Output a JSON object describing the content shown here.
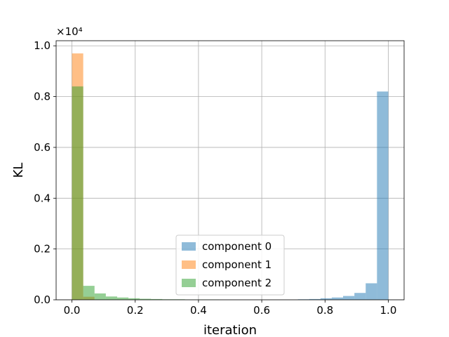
{
  "chart_data": {
    "type": "bar",
    "subtype": "histogram",
    "xlabel": "iteration",
    "ylabel": "KL",
    "xlim": [
      -0.05,
      1.05
    ],
    "ylim": [
      0,
      1.02
    ],
    "y_multiplier": "×10⁴",
    "x_ticks": [
      "0.0",
      "0.2",
      "0.4",
      "0.6",
      "0.8",
      "1.0"
    ],
    "y_ticks": [
      "0.0",
      "0.2",
      "0.4",
      "0.6",
      "0.8",
      "1.0"
    ],
    "grid": true,
    "legend_position": "lower-center",
    "bin_edges": [
      0.0,
      0.0357,
      0.0714,
      0.1071,
      0.1429,
      0.1786,
      0.2143,
      0.25,
      0.2857,
      0.3214,
      0.3571,
      0.3929,
      0.4286,
      0.4643,
      0.5,
      0.5357,
      0.5714,
      0.6071,
      0.6429,
      0.6786,
      0.7143,
      0.75,
      0.7857,
      0.8214,
      0.8571,
      0.8929,
      0.9286,
      0.9643,
      1.0
    ],
    "series": [
      {
        "name": "component 0",
        "color": "#1f77b4",
        "values": [
          0.0,
          0.0,
          0.0,
          0.0,
          0.0,
          0.0,
          0.0,
          0.0,
          0.0,
          0.0,
          0.0,
          0.0,
          0.0,
          0.0,
          0.0,
          0.0,
          0.0,
          0.0,
          0.0,
          0.0,
          0.002,
          0.003,
          0.006,
          0.009,
          0.015,
          0.027,
          0.065,
          0.82
        ]
      },
      {
        "name": "component 1",
        "color": "#ff7f0e",
        "values": [
          0.97,
          0.012,
          0.0,
          0.0,
          0.0,
          0.0,
          0.0,
          0.0,
          0.0,
          0.0,
          0.0,
          0.0,
          0.0,
          0.0,
          0.0,
          0.0,
          0.0,
          0.0,
          0.0,
          0.0,
          0.0,
          0.0,
          0.0,
          0.0,
          0.0,
          0.0,
          0.0,
          0.0
        ]
      },
      {
        "name": "component 2",
        "color": "#2ca02c",
        "values": [
          0.84,
          0.055,
          0.025,
          0.013,
          0.009,
          0.006,
          0.004,
          0.003,
          0.002,
          0.002,
          0.001,
          0.001,
          0.001,
          0.0,
          0.0,
          0.0,
          0.0,
          0.0,
          0.0,
          0.0,
          0.0,
          0.0,
          0.0,
          0.0,
          0.0,
          0.0,
          0.0,
          0.0
        ]
      }
    ]
  }
}
